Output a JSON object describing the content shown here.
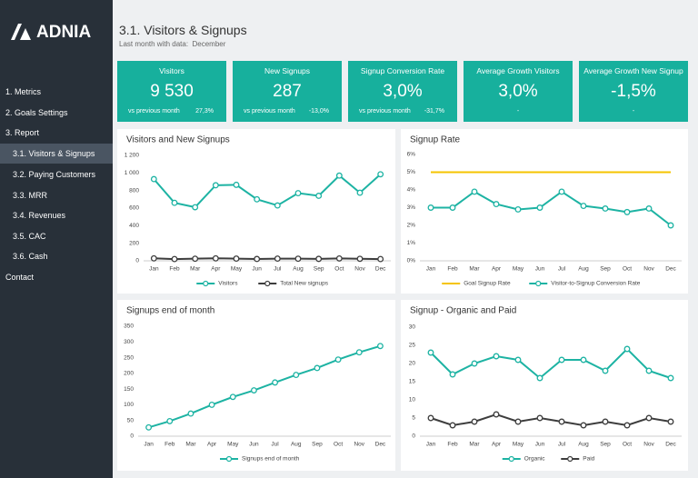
{
  "sidebar": {
    "logo": "ADNIA",
    "nav": [
      "1. Metrics",
      "2. Goals Settings",
      "3. Report",
      "3.1. Visitors & Signups",
      "3.2. Paying Customers",
      "3.3. MRR",
      "3.4. Revenues",
      "3.5. CAC",
      "3.6. Cash",
      "Contact"
    ]
  },
  "header": {
    "title": "3.1. Visitors & Signups",
    "subtitle_label": "Last month with data:",
    "subtitle_value": "December"
  },
  "kpis": [
    {
      "title": "Visitors",
      "value": "9 530",
      "compare_label": "vs previous month",
      "compare_value": "27,3%"
    },
    {
      "title": "New Signups",
      "value": "287",
      "compare_label": "vs previous month",
      "compare_value": "-13,0%"
    },
    {
      "title": "Signup Conversion Rate",
      "value": "3,0%",
      "compare_label": "vs previous month",
      "compare_value": "-31,7%"
    },
    {
      "title": "Average Growth Visitors",
      "value": "3,0%",
      "compare_value": "-"
    },
    {
      "title": "Average Growth New Signup",
      "value": "-1,5%",
      "compare_value": "-"
    }
  ],
  "chart_data": [
    {
      "type": "line",
      "title": "Visitors and New Signups",
      "categories": [
        "Jan",
        "Feb",
        "Mar",
        "Apr",
        "May",
        "Jun",
        "Jul",
        "Aug",
        "Sep",
        "Oct",
        "Nov",
        "Dec"
      ],
      "series": [
        {
          "name": "Visitors",
          "color": "#1db3a3",
          "values": [
            930,
            660,
            610,
            860,
            865,
            700,
            630,
            770,
            740,
            970,
            775,
            985
          ]
        },
        {
          "name": "Total New signups",
          "color": "#3d3d3d",
          "values": [
            28,
            20,
            24,
            28,
            25,
            21,
            25,
            24,
            22,
            27,
            23,
            20
          ]
        }
      ],
      "ylim": [
        0,
        1200
      ],
      "yticks": [
        0,
        200,
        400,
        600,
        800,
        {
          "value": 1000,
          "label": "1 000"
        },
        {
          "value": 1200,
          "label": "1 200"
        }
      ],
      "legend": "bottom"
    },
    {
      "type": "line",
      "title": "Signup Rate",
      "categories": [
        "Jan",
        "Feb",
        "Mar",
        "Apr",
        "May",
        "Jun",
        "Jul",
        "Aug",
        "Sep",
        "Oct",
        "Nov",
        "Dec"
      ],
      "series": [
        {
          "name": "Goal Signup Rate",
          "color": "#f5c400",
          "markers": false,
          "values": [
            5,
            5,
            5,
            5,
            5,
            5,
            5,
            5,
            5,
            5,
            5,
            5
          ]
        },
        {
          "name": "Visitor-to-Signup Conversion Rate",
          "color": "#1db3a3",
          "values": [
            3.0,
            3.0,
            3.9,
            3.2,
            2.9,
            3.0,
            3.9,
            3.1,
            2.95,
            2.75,
            2.95,
            2.0
          ]
        }
      ],
      "ylim": [
        0,
        6
      ],
      "yticks": [
        {
          "value": 0,
          "label": "0%"
        },
        {
          "value": 1,
          "label": "1%"
        },
        {
          "value": 2,
          "label": "2%"
        },
        {
          "value": 3,
          "label": "3%"
        },
        {
          "value": 4,
          "label": "4%"
        },
        {
          "value": 5,
          "label": "5%"
        },
        {
          "value": 6,
          "label": "6%"
        }
      ],
      "legend": "bottom"
    },
    {
      "type": "line",
      "title": "Signups end of month",
      "categories": [
        "Jan",
        "Feb",
        "Mar",
        "Apr",
        "May",
        "Jun",
        "Jul",
        "Aug",
        "Sep",
        "Oct",
        "Nov",
        "Dec"
      ],
      "series": [
        {
          "name": "Signups end of month",
          "color": "#1db3a3",
          "values": [
            28,
            48,
            72,
            100,
            125,
            146,
            171,
            195,
            217,
            244,
            267,
            287
          ]
        }
      ],
      "ylim": [
        0,
        350
      ],
      "yticks": [
        0,
        50,
        100,
        150,
        200,
        250,
        300,
        350
      ],
      "legend": "bottom"
    },
    {
      "type": "line",
      "title": "Signup - Organic and Paid",
      "categories": [
        "Jan",
        "Feb",
        "Mar",
        "Apr",
        "May",
        "Jun",
        "Jul",
        "Aug",
        "Sep",
        "Oct",
        "Nov",
        "Dec"
      ],
      "series": [
        {
          "name": "Organic",
          "color": "#1db3a3",
          "values": [
            23,
            17,
            20,
            22,
            21,
            16,
            21,
            21,
            18,
            24,
            18,
            16
          ]
        },
        {
          "name": "Paid",
          "color": "#3d3d3d",
          "values": [
            5,
            3,
            4,
            6,
            4,
            5,
            4,
            3,
            4,
            3,
            5,
            4
          ]
        }
      ],
      "ylim": [
        0,
        30
      ],
      "yticks": [
        0,
        5,
        10,
        15,
        20,
        25,
        30
      ],
      "legend": "bottom"
    }
  ]
}
